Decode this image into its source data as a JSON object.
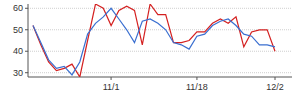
{
  "chart_data": {
    "type": "line",
    "categories": [
      null,
      null,
      null,
      null,
      null,
      null,
      null,
      null,
      null,
      null,
      "11/1",
      null,
      null,
      null,
      null,
      null,
      null,
      null,
      null,
      null,
      null,
      "11/18",
      null,
      null,
      null,
      null,
      null,
      null,
      null,
      null,
      null,
      "12/2"
    ],
    "series": [
      {
        "color": "#d42020",
        "values": [
          52,
          43,
          35,
          31,
          32,
          34,
          28,
          45,
          62,
          60,
          52,
          59,
          61,
          59,
          43,
          62,
          57,
          57,
          44,
          44,
          45,
          49,
          49,
          53,
          55,
          53,
          56,
          42,
          49,
          50,
          50,
          40
        ]
      },
      {
        "color": "#3a6fd0",
        "values": [
          52,
          44,
          36,
          32,
          33,
          29,
          35,
          48,
          53,
          56,
          60,
          55,
          50,
          44,
          54,
          55,
          53,
          50,
          44,
          43,
          41,
          47,
          48,
          52,
          54,
          55,
          52,
          48,
          47,
          43,
          43,
          42
        ]
      }
    ],
    "ylim": [
      28,
      62
    ],
    "yticks": [
      30,
      40,
      50,
      60
    ],
    "grid": true
  }
}
